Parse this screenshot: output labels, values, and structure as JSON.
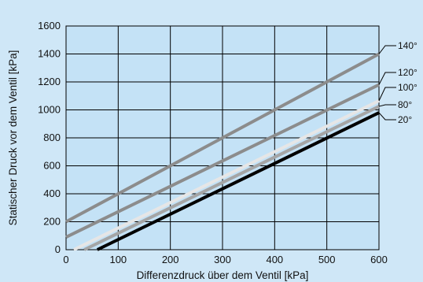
{
  "chart_data": {
    "type": "line",
    "title": "",
    "xlabel": "Differenzdruck über dem Ventil [kPa]",
    "ylabel": "Statischer Druck vor dem Ventil [kPa]",
    "xlim": [
      0,
      600
    ],
    "ylim": [
      0,
      1600
    ],
    "xticks": [
      "0",
      "100",
      "200",
      "300",
      "400",
      "500",
      "600"
    ],
    "yticks": [
      "0",
      "200",
      "400",
      "600",
      "800",
      "1000",
      "1200",
      "1400",
      "1600"
    ],
    "grid": true,
    "legend": "right",
    "series": [
      {
        "name": "140°",
        "x": [
          0,
          600
        ],
        "y": [
          200,
          1400
        ],
        "color": "#8c8c8c"
      },
      {
        "name": "120°",
        "x": [
          0,
          600
        ],
        "y": [
          90,
          1180
        ],
        "color": "#8c8c8c"
      },
      {
        "name": "100°",
        "x": [
          15,
          600
        ],
        "y": [
          0,
          1065
        ],
        "color": "#e6e6e6"
      },
      {
        "name": "80°",
        "x": [
          35,
          600
        ],
        "y": [
          0,
          1025
        ],
        "color": "#a5a5a5"
      },
      {
        "name": "20°",
        "x": [
          60,
          600
        ],
        "y": [
          0,
          980
        ],
        "color": "#000000"
      }
    ]
  }
}
